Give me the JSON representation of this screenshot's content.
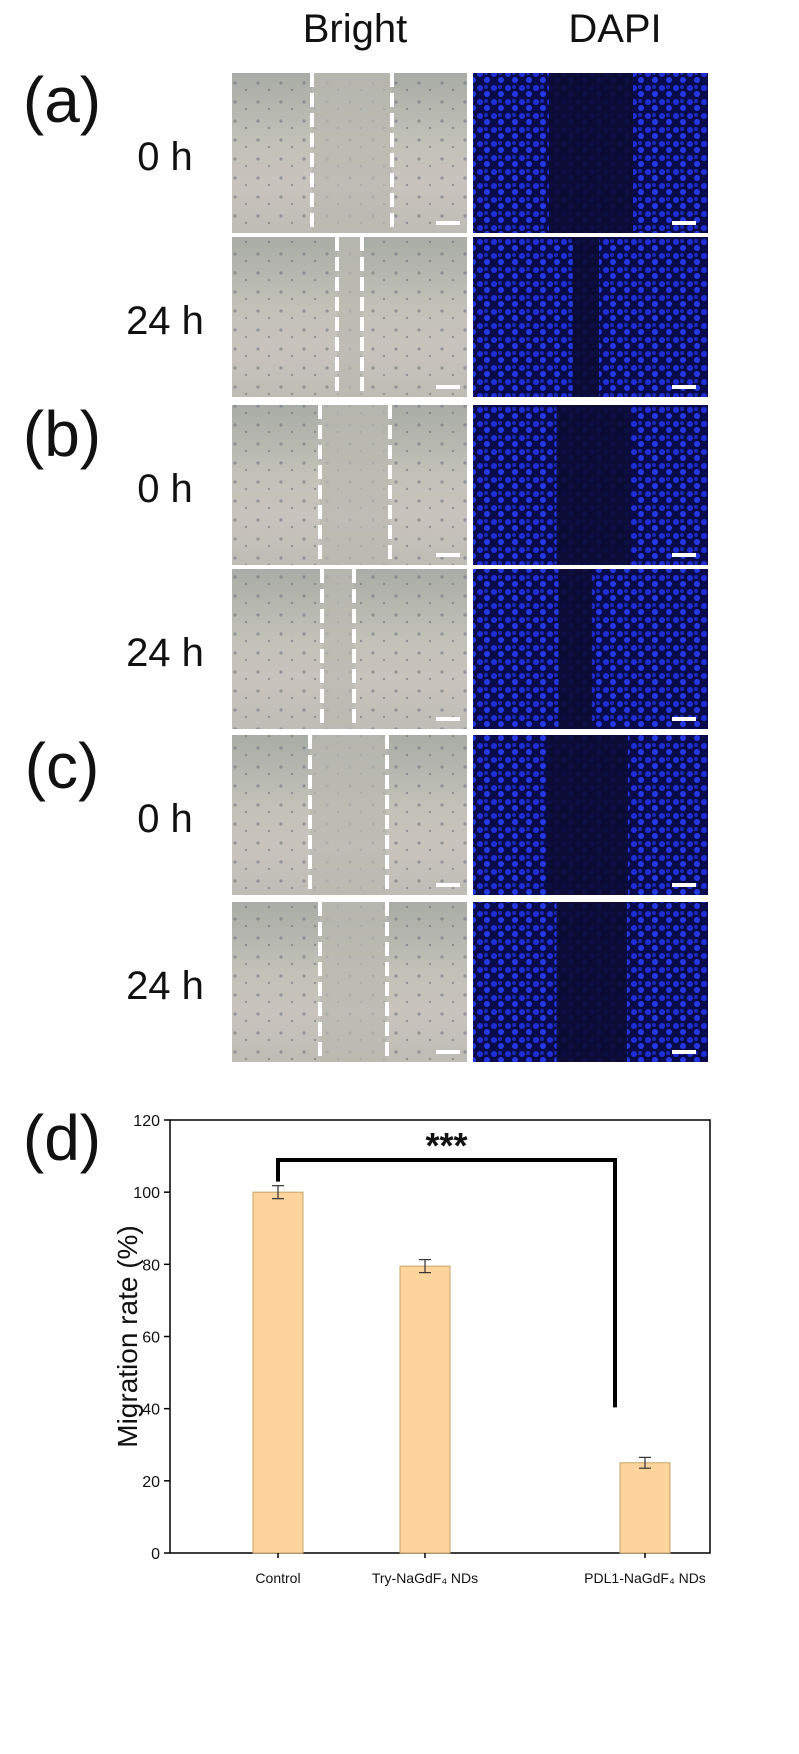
{
  "panels": {
    "headers": [
      "Bright",
      "DAPI"
    ],
    "groups": [
      {
        "label": "(a)",
        "rows": [
          "0 h",
          "24 h"
        ]
      },
      {
        "label": "(b)",
        "rows": [
          "0 h",
          "24 h"
        ]
      },
      {
        "label": "(c)",
        "rows": [
          "0 h",
          "24 h"
        ]
      }
    ]
  },
  "chart_data": {
    "type": "bar",
    "panel_label": "(d)",
    "ylabel": "Migration rate (%)",
    "categories": [
      "Control",
      "Try-NaGdF₄ NDs",
      "PDL1-NaGdF₄ NDs"
    ],
    "values": [
      100,
      79.5,
      25
    ],
    "errors": [
      1.8,
      1.8,
      1.5
    ],
    "color": "#fdd49b",
    "edge_color": "#c8a266",
    "ylim": [
      0,
      120
    ],
    "yticks": [
      0,
      20,
      40,
      60,
      80,
      100,
      120
    ],
    "annotation": "***"
  }
}
